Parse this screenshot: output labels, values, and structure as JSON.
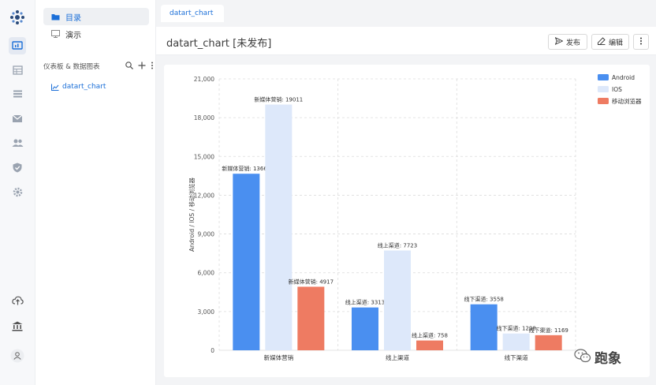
{
  "rail": {
    "items": [
      "dashboard-icon",
      "table-icon",
      "list-icon",
      "mail-icon",
      "users-icon",
      "shield-icon",
      "gear-icon"
    ],
    "bottom": [
      "cloud-upload-icon",
      "bank-icon",
      "user-icon"
    ]
  },
  "tree": {
    "nav": [
      {
        "label": "目录",
        "icon": "folder-icon"
      },
      {
        "label": "演示",
        "icon": "monitor-icon"
      }
    ],
    "section_title": "仪表板 & 数据图表",
    "chart_item": "datart_chart"
  },
  "tab": {
    "label": "datart_chart"
  },
  "header": {
    "title": "datart_chart [未发布]",
    "publish_label": "发布",
    "edit_label": "编辑"
  },
  "colors": {
    "android": "#4a8ff0",
    "ios": "#dde8fa",
    "browser": "#ee7b62",
    "accent": "#1b6fd8"
  },
  "chart_data": {
    "type": "bar",
    "categories": [
      "新媒体营销",
      "线上渠道",
      "线下渠道"
    ],
    "series": [
      {
        "name": "Android",
        "values": [
          13661,
          3313,
          3558
        ],
        "labels": [
          "新媒体营销: 13661",
          "线上渠道: 3313",
          "线下渠道: 3558"
        ]
      },
      {
        "name": "IOS",
        "values": [
          19011,
          7723,
          1298
        ],
        "labels": [
          "新媒体营销: 19011",
          "线上渠道: 7723",
          "线下渠道: 1298"
        ]
      },
      {
        "name": "移动浏览器",
        "values": [
          4917,
          758,
          1169
        ],
        "labels": [
          "新媒体营销: 4917",
          "线上渠道: 758",
          "线下渠道: 1169"
        ]
      }
    ],
    "ylabel": "Android / IOS / 移动浏览器",
    "xlabel": "",
    "ylim": [
      0,
      21000
    ],
    "yticks": [
      "0",
      "3,000",
      "6,000",
      "9,000",
      "12,000",
      "15,000",
      "18,000",
      "21,000"
    ],
    "grid": true,
    "legend": "top-right"
  },
  "watermark": {
    "text": "跑象"
  }
}
